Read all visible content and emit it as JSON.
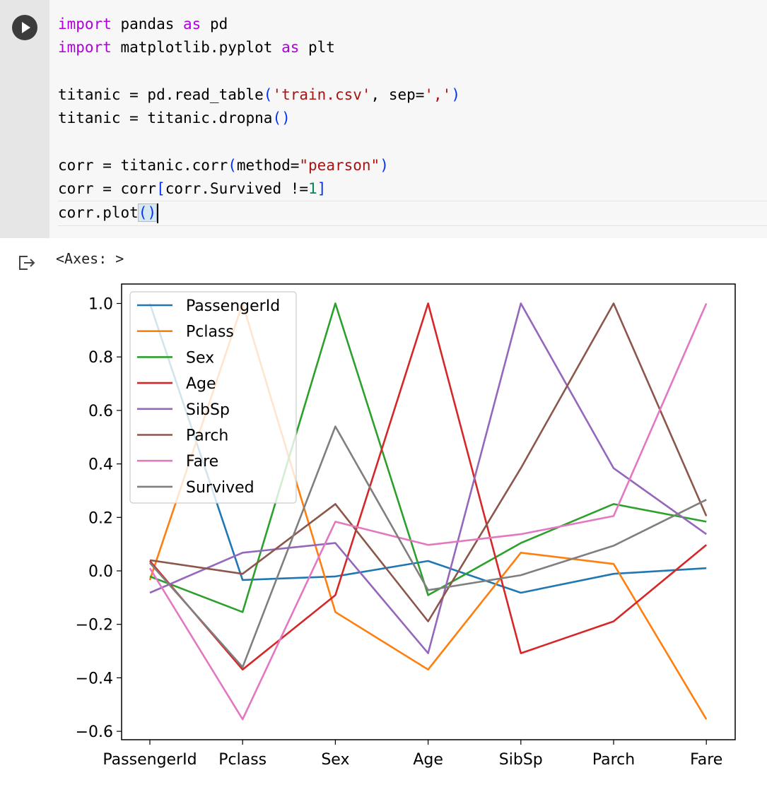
{
  "cell": {
    "run_button_icon": "play-icon",
    "code_lines": [
      [
        {
          "t": "import",
          "c": "kw"
        },
        {
          "t": " pandas "
        },
        {
          "t": "as",
          "c": "kw"
        },
        {
          "t": " pd"
        }
      ],
      [
        {
          "t": "import",
          "c": "kw"
        },
        {
          "t": " matplotlib.pyplot "
        },
        {
          "t": "as",
          "c": "kw"
        },
        {
          "t": " plt"
        }
      ],
      [],
      [
        {
          "t": "titanic = pd.read_table"
        },
        {
          "t": "(",
          "c": "br1"
        },
        {
          "t": "'train.csv'",
          "c": "str"
        },
        {
          "t": ", sep="
        },
        {
          "t": "','",
          "c": "str"
        },
        {
          "t": ")",
          "c": "br1"
        }
      ],
      [
        {
          "t": "titanic = titanic.dropna"
        },
        {
          "t": "()",
          "c": "br1"
        }
      ],
      [],
      [
        {
          "t": "corr = titanic.corr"
        },
        {
          "t": "(",
          "c": "br1"
        },
        {
          "t": "method="
        },
        {
          "t": "\"pearson\"",
          "c": "str"
        },
        {
          "t": ")",
          "c": "br1"
        }
      ],
      [
        {
          "t": "corr = corr"
        },
        {
          "t": "[",
          "c": "br1"
        },
        {
          "t": "corr.Survived !="
        },
        {
          "t": "1",
          "c": "num"
        },
        {
          "t": "]",
          "c": "br1"
        }
      ],
      [
        {
          "t": "corr.plot"
        },
        {
          "t": "()",
          "c": "br1 paren-hl"
        }
      ]
    ]
  },
  "output": {
    "icon": "output-redirect-icon",
    "repr_text": "<Axes: >"
  },
  "chart_data": {
    "type": "line",
    "categories": [
      "PassengerId",
      "Pclass",
      "Sex",
      "Age",
      "SibSp",
      "Parch",
      "Fare"
    ],
    "ylim": [
      -0.63,
      1.05
    ],
    "yticks": [
      1.0,
      0.8,
      0.6,
      0.4,
      0.2,
      0.0,
      -0.2,
      -0.4,
      -0.6
    ],
    "ytick_labels": [
      "1.0",
      "0.8",
      "0.6",
      "0.4",
      "0.2",
      "0.0",
      "−0.2",
      "−0.4",
      "−0.6"
    ],
    "legend_position": "top-left",
    "series": [
      {
        "name": "PassengerId",
        "color": "#1f77b4",
        "values": [
          1.0,
          -0.034,
          -0.021,
          0.037,
          -0.082,
          -0.011,
          0.01
        ]
      },
      {
        "name": "Pclass",
        "color": "#ff7f0e",
        "values": [
          -0.034,
          1.0,
          -0.154,
          -0.369,
          0.068,
          0.026,
          -0.555
        ]
      },
      {
        "name": "Sex",
        "color": "#2ca02c",
        "values": [
          -0.021,
          -0.154,
          1.0,
          -0.091,
          0.104,
          0.25,
          0.184
        ]
      },
      {
        "name": "Age",
        "color": "#d62728",
        "values": [
          0.037,
          -0.369,
          -0.091,
          1.0,
          -0.308,
          -0.189,
          0.097
        ]
      },
      {
        "name": "SibSp",
        "color": "#9467bd",
        "values": [
          -0.082,
          0.068,
          0.104,
          -0.308,
          1.0,
          0.384,
          0.137
        ]
      },
      {
        "name": "Parch",
        "color": "#8c564b",
        "values": [
          0.04,
          -0.011,
          0.25,
          -0.189,
          0.384,
          1.0,
          0.205
        ]
      },
      {
        "name": "Fare",
        "color": "#e377c2",
        "values": [
          0.01,
          -0.555,
          0.184,
          0.097,
          0.137,
          0.205,
          1.0
        ]
      },
      {
        "name": "Survived",
        "color": "#7f7f7f",
        "values": [
          0.03,
          -0.36,
          0.54,
          -0.072,
          -0.016,
          0.094,
          0.266
        ]
      }
    ]
  }
}
